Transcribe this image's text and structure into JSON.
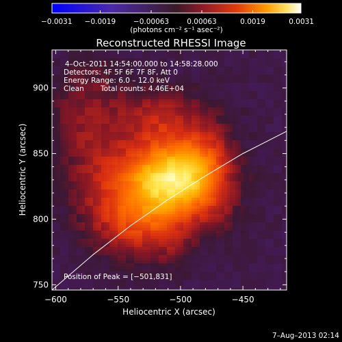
{
  "chart_data": {
    "type": "heatmap",
    "title": "Reconstructed RHESSI Image",
    "xlabel": "Heliocentric X (arcsec)",
    "ylabel": "Heliocentric Y (arcsec)",
    "xlim": [
      -603,
      -415
    ],
    "ylim": [
      746,
      929
    ],
    "x_ticks": [
      -600,
      -550,
      -500,
      -450
    ],
    "x_tick_labels": [
      "−600",
      "−550",
      "−500",
      "−450"
    ],
    "y_ticks": [
      750,
      800,
      850,
      900
    ],
    "y_tick_labels": [
      "750",
      "800",
      "850",
      "900"
    ],
    "colorbar": {
      "range": [
        -0.0031,
        0.0031
      ],
      "ticks": [
        -0.0031,
        -0.0019,
        -0.00063,
        0.00063,
        0.0019,
        0.0031
      ],
      "tick_labels": [
        "−0.0031",
        "−0.0019",
        "−0.00063",
        "0.00063",
        "0.0019",
        "0.0031"
      ],
      "unit_label": "(photons cm⁻² s⁻¹ asec⁻²)"
    },
    "annotations": {
      "time_range": "4–Oct–2011 14:54:00.000 to 14:58:28.000",
      "detectors": "Detectors: 4F 5F 6F 7F 8F, Att 0",
      "energy_range": "Energy Range: 6.0 – 12.0 keV",
      "clean_label": "Clean",
      "total_counts": "Total counts: 4.46E+04",
      "peak_position": "Position of Peak = [−501,831]"
    },
    "peak": {
      "x": -501,
      "y": 831
    },
    "limb_curve": [
      [
        -603,
        746
      ],
      [
        -570,
        773
      ],
      [
        -540,
        795
      ],
      [
        -510,
        815
      ],
      [
        -480,
        833
      ],
      [
        -450,
        850
      ],
      [
        -415,
        867
      ]
    ],
    "sources": [
      {
        "x": -501,
        "y": 831,
        "sx": 25,
        "sy": 19,
        "amp": 0.00168
      },
      {
        "x": -528,
        "y": 818,
        "sx": 26,
        "sy": 26,
        "amp": 0.00072
      },
      {
        "x": -515,
        "y": 878,
        "sx": 19,
        "sy": 15,
        "amp": 0.00052
      },
      {
        "x": -562,
        "y": 874,
        "sx": 23,
        "sy": 21,
        "amp": 0.00038
      },
      {
        "x": -478,
        "y": 858,
        "sx": 16,
        "sy": 22,
        "amp": 0.00038
      },
      {
        "x": -568,
        "y": 828,
        "sx": 19,
        "sy": 24,
        "amp": 0.00034
      },
      {
        "x": -540,
        "y": 793,
        "sx": 23,
        "sy": 17,
        "amp": 0.00042
      },
      {
        "x": -572,
        "y": 905,
        "sx": 15,
        "sy": 11,
        "amp": 0.00022
      },
      {
        "x": -470,
        "y": 803,
        "sx": 13,
        "sy": 13,
        "amp": 0.0002
      },
      {
        "x": -505,
        "y": 782,
        "sx": 13,
        "sy": 13,
        "amp": 0.00024
      },
      {
        "x": -590,
        "y": 875,
        "sx": 12,
        "sy": 25,
        "amp": 0.00018
      }
    ],
    "background_level": -0.00038
  },
  "footer": {
    "timestamp": "7–Aug–2013 02:14"
  }
}
